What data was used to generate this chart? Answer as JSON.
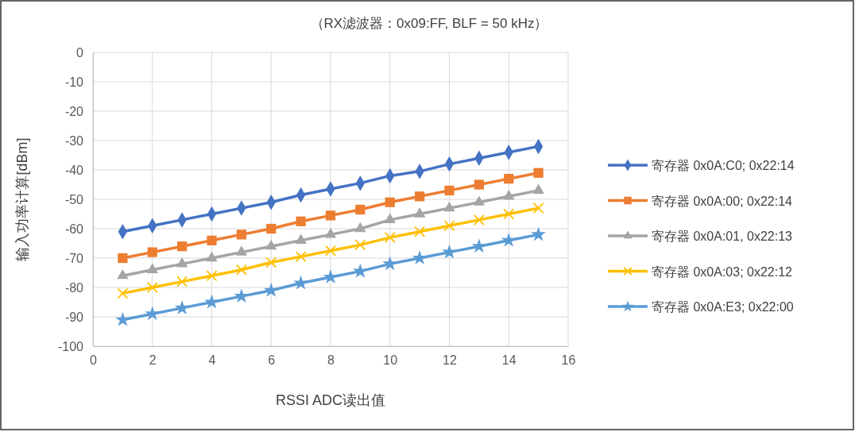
{
  "chart_data": {
    "type": "line",
    "title": "（RX滤波器：0x09:FF, BLF = 50 kHz）",
    "xlabel": "RSSI ADC读出值",
    "ylabel": "输入功率计算[dBm]",
    "x": [
      1,
      2,
      3,
      4,
      5,
      6,
      7,
      8,
      9,
      10,
      11,
      12,
      13,
      14,
      15
    ],
    "xlim": [
      0,
      16
    ],
    "xticks": [
      0,
      2,
      4,
      6,
      8,
      10,
      12,
      14,
      16
    ],
    "ylim": [
      -100,
      0
    ],
    "yticks": [
      -100,
      -90,
      -80,
      -70,
      -60,
      -50,
      -40,
      -30,
      -20,
      -10,
      0
    ],
    "grid": true,
    "legend": "right",
    "series": [
      {
        "name": "寄存器 0x0A:C0; 0x22:14",
        "color": "#4472c4",
        "marker": "diamond",
        "values": [
          -61,
          -59,
          -57,
          -55,
          -53,
          -51,
          -48.5,
          -46.5,
          -44.5,
          -42,
          -40.5,
          -38,
          -36,
          -34,
          -32
        ]
      },
      {
        "name": "寄存器 0x0A:00; 0x22:14",
        "color": "#ed7d31",
        "marker": "square",
        "values": [
          -70,
          -68,
          -66,
          -64,
          -62,
          -60,
          -57.5,
          -55.5,
          -53.5,
          -51,
          -49,
          -47,
          -45,
          -43,
          -41
        ]
      },
      {
        "name": "寄存器 0x0A:01, 0x22:13",
        "color": "#a5a5a5",
        "marker": "triangle",
        "values": [
          -76,
          -74,
          -72,
          -70,
          -68,
          -66,
          -64,
          -62,
          -60,
          -57,
          -55,
          -53,
          -51,
          -49,
          -47
        ]
      },
      {
        "name": "寄存器 0x0A:03; 0x22:12",
        "color": "#ffc000",
        "marker": "cross",
        "values": [
          -82,
          -80,
          -78,
          -76,
          -74,
          -71.5,
          -69.5,
          -67.5,
          -65.5,
          -63,
          -61,
          -59,
          -57,
          -55,
          -53
        ]
      },
      {
        "name": "寄存器 0x0A:E3; 0x22:00",
        "color": "#5b9bd5",
        "marker": "star",
        "values": [
          -91,
          -89,
          -87,
          -85,
          -83,
          -81,
          -78.5,
          -76.5,
          -74.5,
          -72,
          -70,
          -68,
          -66,
          -64,
          -62
        ]
      }
    ]
  }
}
